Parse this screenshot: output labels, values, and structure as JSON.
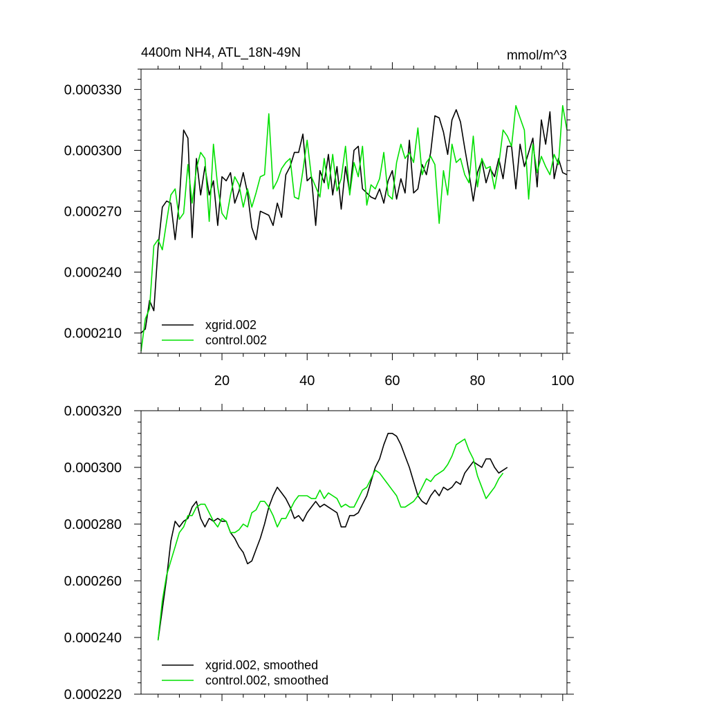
{
  "chart_data": [
    {
      "type": "line",
      "title": "4400m NH4, ATL_18N-49N",
      "units": "mmol/m^3",
      "xlim": [
        1,
        101
      ],
      "ylim": [
        0.0002,
        0.00034
      ],
      "x_ticks": [
        20,
        40,
        60,
        80,
        100
      ],
      "y_ticks": [
        0.00021,
        0.00024,
        0.00027,
        0.0003,
        0.00033
      ],
      "y_tick_labels": [
        "0.000210",
        "0.000240",
        "0.000270",
        "0.000300",
        "0.000330"
      ],
      "legend_position": "bottom-left",
      "series": [
        {
          "name": "xgrid.002",
          "color": "#000000",
          "x_start": 1,
          "values": [
            0.00021,
            0.000212,
            0.000226,
            0.000221,
            0.000252,
            0.000272,
            0.000275,
            0.000274,
            0.000256,
            0.000275,
            0.00031,
            0.000306,
            0.000257,
            0.000296,
            0.000278,
            0.000292,
            0.000278,
            0.000285,
            0.000263,
            0.000287,
            0.000285,
            0.000289,
            0.000274,
            0.00028,
            0.000289,
            0.000279,
            0.000262,
            0.000256,
            0.00027,
            0.000269,
            0.000268,
            0.000263,
            0.000274,
            0.000267,
            0.000288,
            0.000292,
            0.000299,
            0.000299,
            0.000308,
            0.000285,
            0.000287,
            0.000263,
            0.00029,
            0.000284,
            0.000298,
            0.000278,
            0.000292,
            0.000271,
            0.000292,
            0.000279,
            0.0003,
            0.000302,
            0.000281,
            0.000279,
            0.000277,
            0.000276,
            0.000281,
            0.000274,
            0.000285,
            0.00029,
            0.000276,
            0.000286,
            0.000279,
            0.000305,
            0.000279,
            0.000281,
            0.000293,
            0.000288,
            0.000299,
            0.000317,
            0.000316,
            0.000309,
            0.000298,
            0.000315,
            0.00032,
            0.000314,
            0.000301,
            0.000289,
            0.000275,
            0.000289,
            0.000295,
            0.000284,
            0.000291,
            0.000287,
            0.000296,
            0.000286,
            0.000302,
            0.000302,
            0.000281,
            0.000303,
            0.000292,
            0.000299,
            0.000306,
            0.000282,
            0.000315,
            0.000303,
            0.000319,
            0.000286,
            0.000296,
            0.000289,
            0.000288
          ]
        },
        {
          "name": "control.002",
          "color": "#00e000",
          "x_start": 1,
          "values": [
            0.000201,
            0.000217,
            0.000222,
            0.000253,
            0.000256,
            0.000251,
            0.000265,
            0.000278,
            0.000281,
            0.000266,
            0.000269,
            0.000293,
            0.000274,
            0.000291,
            0.000299,
            0.000296,
            0.000265,
            0.000303,
            0.000282,
            0.000269,
            0.000266,
            0.000278,
            0.000287,
            0.000283,
            0.000272,
            0.000281,
            0.000272,
            0.000279,
            0.000287,
            0.000288,
            0.000318,
            0.000281,
            0.000285,
            0.000291,
            0.000294,
            0.000296,
            0.000277,
            0.000276,
            0.00029,
            0.000305,
            0.000287,
            0.000282,
            0.000277,
            0.000296,
            0.000281,
            0.000298,
            0.00028,
            0.000286,
            0.000302,
            0.000278,
            0.000294,
            0.000287,
            0.000302,
            0.000273,
            0.000283,
            0.000281,
            0.000286,
            0.000299,
            0.000278,
            0.000276,
            0.000294,
            0.000303,
            0.000296,
            0.000299,
            0.000294,
            0.000311,
            0.000288,
            0.000294,
            0.000297,
            0.000293,
            0.000264,
            0.00029,
            0.000278,
            0.000303,
            0.000294,
            0.000296,
            0.000288,
            0.000284,
            0.000307,
            0.000282,
            0.000296,
            0.000291,
            0.000292,
            0.000281,
            0.000293,
            0.00031,
            0.000307,
            0.000302,
            0.000322,
            0.000316,
            0.00031,
            0.000276,
            0.000303,
            0.000289,
            0.000297,
            0.000292,
            0.000288,
            0.000298,
            0.000293,
            0.000322,
            0.00031
          ]
        }
      ]
    },
    {
      "type": "line",
      "xlim": [
        1,
        101
      ],
      "ylim": [
        0.00022,
        0.00032
      ],
      "x_ticks": [
        20,
        40,
        60,
        80,
        100
      ],
      "y_ticks": [
        0.00022,
        0.00024,
        0.00026,
        0.00028,
        0.0003,
        0.00032
      ],
      "y_tick_labels": [
        "0.000220",
        "0.000240",
        "0.000260",
        "0.000280",
        "0.000300",
        "0.000320"
      ],
      "legend_position": "bottom-left",
      "series": [
        {
          "name": "xgrid.002, smoothed",
          "color": "#000000",
          "x_start": 5,
          "values": [
            0.000239,
            0.00025,
            0.000261,
            0.000274,
            0.000281,
            0.000279,
            0.000281,
            0.000282,
            0.000286,
            0.000288,
            0.000282,
            0.000279,
            0.000282,
            0.000281,
            0.000282,
            0.000281,
            0.000281,
            0.000277,
            0.000275,
            0.000272,
            0.00027,
            0.000266,
            0.000267,
            0.000271,
            0.000275,
            0.00028,
            0.000286,
            0.00029,
            0.000293,
            0.000291,
            0.000289,
            0.000286,
            0.000282,
            0.000283,
            0.000281,
            0.000284,
            0.000286,
            0.000288,
            0.000286,
            0.000287,
            0.000286,
            0.000285,
            0.000284,
            0.000279,
            0.000279,
            0.000283,
            0.000283,
            0.000284,
            0.000287,
            0.00029,
            0.000295,
            0.0003,
            0.000303,
            0.000308,
            0.000312,
            0.000312,
            0.000311,
            0.000308,
            0.000304,
            0.0003,
            0.000295,
            0.00029,
            0.000288,
            0.000287,
            0.00029,
            0.000292,
            0.00029,
            0.000293,
            0.000292,
            0.000293,
            0.000295,
            0.000294,
            0.000298,
            0.0003,
            0.000302,
            0.000301,
            0.0003,
            0.000303,
            0.000303,
            0.0003,
            0.000298,
            0.000299,
            0.0003
          ]
        },
        {
          "name": "control.002, smoothed",
          "color": "#00e000",
          "x_start": 5,
          "values": [
            0.000239,
            0.000253,
            0.000262,
            0.000267,
            0.000272,
            0.000277,
            0.000279,
            0.000283,
            0.000283,
            0.000286,
            0.000287,
            0.000287,
            0.000284,
            0.000281,
            0.000279,
            0.000282,
            0.000281,
            0.000277,
            0.000277,
            0.000278,
            0.00028,
            0.000279,
            0.000284,
            0.000285,
            0.000288,
            0.000288,
            0.000286,
            0.000283,
            0.000279,
            0.000282,
            0.000282,
            0.000285,
            0.000288,
            0.00029,
            0.00029,
            0.00029,
            0.000289,
            0.000289,
            0.000292,
            0.000289,
            0.000291,
            0.00029,
            0.000289,
            0.000286,
            0.000287,
            0.000286,
            0.000286,
            0.000289,
            0.000292,
            0.000293,
            0.000296,
            0.000299,
            0.000298,
            0.000296,
            0.000294,
            0.000292,
            0.00029,
            0.000286,
            0.000286,
            0.000287,
            0.000288,
            0.00029,
            0.000293,
            0.000296,
            0.000295,
            0.000297,
            0.000298,
            0.000299,
            0.000301,
            0.000304,
            0.000308,
            0.000309,
            0.00031,
            0.000306,
            0.000303,
            0.000297,
            0.000293,
            0.000289,
            0.000291,
            0.000293,
            0.000296,
            0.000298
          ]
        }
      ]
    }
  ]
}
